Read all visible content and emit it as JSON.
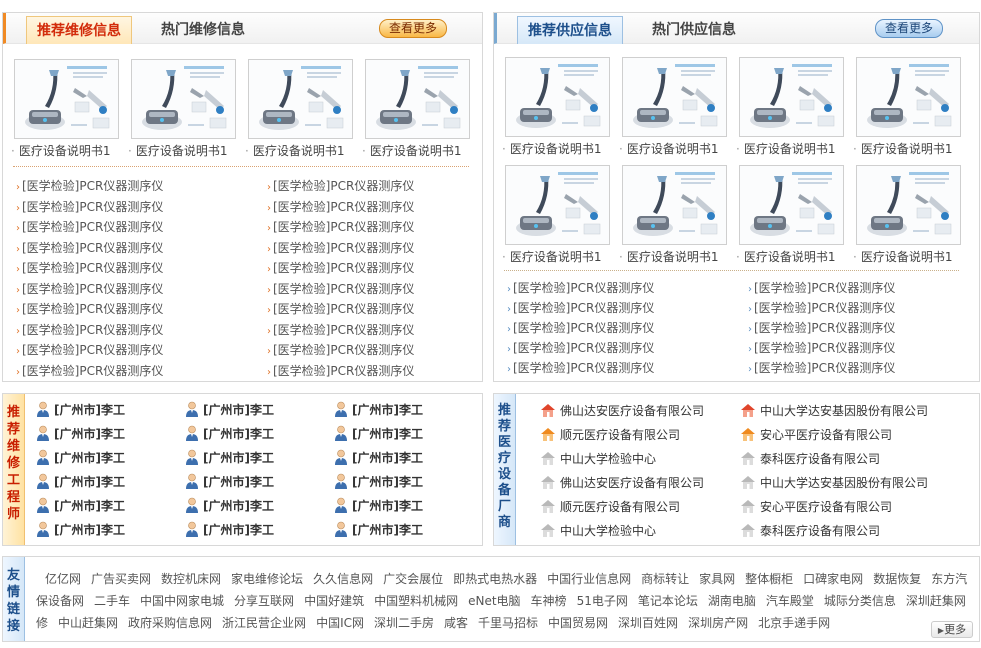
{
  "repair": {
    "tab_active": "推荐维修信息",
    "tab_inactive": "热门维修信息",
    "more": "查看更多",
    "products": [
      "医疗设备说明书1",
      "医疗设备说明书1",
      "医疗设备说明书1",
      "医疗设备说明书1"
    ],
    "rows_left": [
      "[医学检验]PCR仪器测序仪",
      "[医学检验]PCR仪器测序仪",
      "[医学检验]PCR仪器测序仪",
      "[医学检验]PCR仪器测序仪",
      "[医学检验]PCR仪器测序仪",
      "[医学检验]PCR仪器测序仪",
      "[医学检验]PCR仪器测序仪",
      "[医学检验]PCR仪器测序仪",
      "[医学检验]PCR仪器测序仪",
      "[医学检验]PCR仪器测序仪"
    ],
    "rows_right": [
      "[医学检验]PCR仪器测序仪",
      "[医学检验]PCR仪器测序仪",
      "[医学检验]PCR仪器测序仪",
      "[医学检验]PCR仪器测序仪",
      "[医学检验]PCR仪器测序仪",
      "[医学检验]PCR仪器测序仪",
      "[医学检验]PCR仪器测序仪",
      "[医学检验]PCR仪器测序仪",
      "[医学检验]PCR仪器测序仪",
      "[医学检验]PCR仪器测序仪"
    ]
  },
  "supply": {
    "tab_active": "推荐供应信息",
    "tab_inactive": "热门供应信息",
    "more": "查看更多",
    "products": [
      "医疗设备说明书1",
      "医疗设备说明书1",
      "医疗设备说明书1",
      "医疗设备说明书1",
      "医疗设备说明书1",
      "医疗设备说明书1",
      "医疗设备说明书1",
      "医疗设备说明书1"
    ],
    "rows_left": [
      "[医学检验]PCR仪器测序仪",
      "[医学检验]PCR仪器测序仪",
      "[医学检验]PCR仪器测序仪",
      "[医学检验]PCR仪器测序仪",
      "[医学检验]PCR仪器测序仪"
    ],
    "rows_right": [
      "[医学检验]PCR仪器测序仪",
      "[医学检验]PCR仪器测序仪",
      "[医学检验]PCR仪器测序仪",
      "[医学检验]PCR仪器测序仪",
      "[医学检验]PCR仪器测序仪"
    ]
  },
  "engineers": {
    "label": [
      "推",
      "荐",
      "维",
      "修",
      "工",
      "程",
      "师"
    ],
    "items": [
      "[广州市]李工",
      "[广州市]李工",
      "[广州市]李工",
      "[广州市]李工",
      "[广州市]李工",
      "[广州市]李工",
      "[广州市]李工",
      "[广州市]李工",
      "[广州市]李工",
      "[广州市]李工",
      "[广州市]李工",
      "[广州市]李工",
      "[广州市]李工",
      "[广州市]李工",
      "[广州市]李工",
      "[广州市]李工",
      "[广州市]李工",
      "[广州市]李工"
    ]
  },
  "vendors": {
    "label": [
      "推",
      "荐",
      "医",
      "疗",
      "设",
      "备",
      "厂",
      "商"
    ],
    "items": [
      {
        "name": "佛山达安医疗设备有限公司",
        "icon": "house-red-icon"
      },
      {
        "name": "中山大学达安基因股份有限公司",
        "icon": "house-red-icon"
      },
      {
        "name": "顺元医疗设备有限公司",
        "icon": "house-orange-icon"
      },
      {
        "name": "安心平医疗设备有限公司",
        "icon": "house-orange-icon"
      },
      {
        "name": "中山大学检验中心",
        "icon": "house-gray-icon"
      },
      {
        "name": "泰科医疗设备有限公司",
        "icon": "house-gray-icon"
      },
      {
        "name": "佛山达安医疗设备有限公司",
        "icon": "house-gray-icon"
      },
      {
        "name": "中山大学达安基因股份有限公司",
        "icon": "house-gray-icon"
      },
      {
        "name": "顺元医疗设备有限公司",
        "icon": "house-gray-icon"
      },
      {
        "name": "安心平医疗设备有限公司",
        "icon": "house-gray-icon"
      },
      {
        "name": "中山大学检验中心",
        "icon": "house-gray-icon"
      },
      {
        "name": "泰科医疗设备有限公司",
        "icon": "house-gray-icon"
      }
    ]
  },
  "links": {
    "label": [
      "友",
      "情",
      "链",
      "接"
    ],
    "rows": [
      [
        "亿亿网",
        "广告买卖网",
        "数控机床网",
        "家电维修论坛",
        "久久信息网",
        "广交会展位",
        "即热式电热水器",
        "中国行业信息网",
        "商标转让",
        "家具网",
        "整体橱柜",
        "口碑家电网",
        "数据恢复",
        "东方汽"
      ],
      [
        "保设备网",
        "二手车",
        "中国中网家电城",
        "分享互联网",
        "中国好建筑",
        "中国塑料机械网",
        "eNet电脑",
        "车神榜",
        "51电子网",
        "笔记本论坛",
        "湖南电脑",
        "汽车殿堂",
        "城际分类信息",
        "深圳赶集网"
      ],
      [
        "修",
        "中山赶集网",
        "政府采购信息网",
        "浙江民营企业网",
        "中国IC网",
        "深圳二手房",
        "咸客",
        "千里马招标",
        "中国贸易网",
        "深圳百姓网",
        "深圳房产网",
        "北京手递手网"
      ]
    ],
    "more": "更多"
  },
  "colors": {
    "accent_orange": "#f08a24",
    "accent_blue": "#7aa9d1",
    "title_red": "#d22b0a",
    "title_blue": "#1d4f8b"
  }
}
